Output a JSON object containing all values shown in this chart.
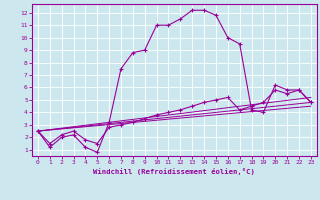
{
  "xlabel": "Windchill (Refroidissement éolien,°C)",
  "bg_color": "#cce8ee",
  "line_color": "#990099",
  "xlim": [
    -0.5,
    23.5
  ],
  "ylim": [
    0.5,
    12.7
  ],
  "xticks": [
    0,
    1,
    2,
    3,
    4,
    5,
    6,
    7,
    8,
    9,
    10,
    11,
    12,
    13,
    14,
    15,
    16,
    17,
    18,
    19,
    20,
    21,
    22,
    23
  ],
  "yticks": [
    1,
    2,
    3,
    4,
    5,
    6,
    7,
    8,
    9,
    10,
    11,
    12
  ],
  "line1_x": [
    0,
    1,
    2,
    3,
    4,
    5,
    6,
    7,
    8,
    9,
    10,
    11,
    12,
    13,
    14,
    15,
    16,
    17,
    18,
    19,
    20,
    21,
    22,
    23
  ],
  "line1_y": [
    2.5,
    1.2,
    2.0,
    2.2,
    1.2,
    0.8,
    3.2,
    7.5,
    8.8,
    9.0,
    11.0,
    11.0,
    11.5,
    12.2,
    12.2,
    11.8,
    10.0,
    9.5,
    4.2,
    4.0,
    6.2,
    5.8,
    5.8,
    4.8
  ],
  "line2_x": [
    0,
    1,
    2,
    3,
    4,
    5,
    6,
    7,
    8,
    9,
    10,
    11,
    12,
    13,
    14,
    15,
    16,
    17,
    18,
    19,
    20,
    21,
    22,
    23
  ],
  "line2_y": [
    2.5,
    1.5,
    2.2,
    2.5,
    1.8,
    1.5,
    2.8,
    3.0,
    3.2,
    3.5,
    3.8,
    4.0,
    4.2,
    4.5,
    4.8,
    5.0,
    5.2,
    4.2,
    4.5,
    4.8,
    5.8,
    5.5,
    5.8,
    4.8
  ],
  "line3_x": [
    0,
    23
  ],
  "line3_y": [
    2.5,
    4.8
  ],
  "line4_x": [
    0,
    23
  ],
  "line4_y": [
    2.5,
    5.2
  ],
  "line5_x": [
    0,
    23
  ],
  "line5_y": [
    2.5,
    4.5
  ]
}
